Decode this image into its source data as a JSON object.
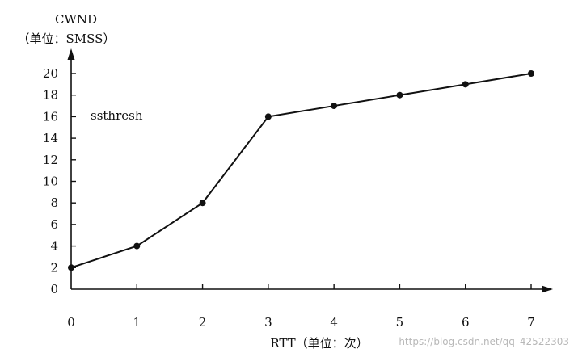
{
  "chart_data": {
    "type": "line",
    "ylabel_line1": "CWND",
    "ylabel_line2": "（单位：SMSS）",
    "xlabel": "RTT（单位：次）",
    "annotation": "ssthresh",
    "x": [
      0,
      1,
      2,
      3,
      4,
      5,
      6,
      7
    ],
    "xlim": [
      0,
      7
    ],
    "ylim": [
      0,
      20
    ],
    "x_ticks": [
      0,
      1,
      2,
      3,
      4,
      5,
      6,
      7
    ],
    "y_ticks": [
      0,
      2,
      4,
      6,
      8,
      10,
      12,
      14,
      16,
      18,
      20
    ],
    "series": [
      {
        "values": [
          2,
          4,
          8,
          16,
          17,
          18,
          19,
          20
        ]
      }
    ],
    "grid": false,
    "legend": "none",
    "watermark": "https://blog.csdn.net/qq_42522303",
    "colors": {
      "axis": "#111111",
      "line": "#111111",
      "marker": "#111111",
      "watermark": "#b8b8b8"
    }
  }
}
